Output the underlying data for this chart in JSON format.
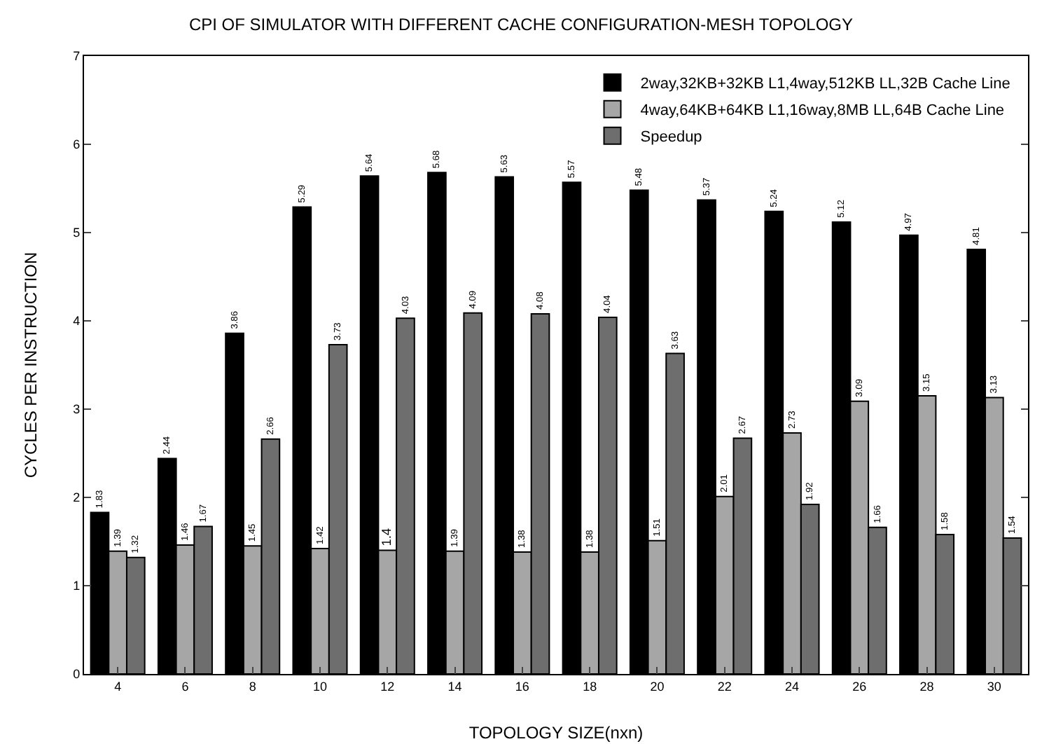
{
  "chart_data": {
    "type": "bar",
    "title": "CPI OF SIMULATOR WITH DIFFERENT CACHE CONFIGURATION-MESH TOPOLOGY",
    "xlabel": "TOPOLOGY SIZE(nxn)",
    "ylabel": "CYCLES PER INSTRUCTION",
    "categories": [
      "4",
      "6",
      "8",
      "10",
      "12",
      "14",
      "16",
      "18",
      "20",
      "22",
      "24",
      "26",
      "28",
      "30"
    ],
    "series": [
      {
        "name": "2way,32KB+32KB L1,4way,512KB LL,32B Cache Line",
        "color": "#000000",
        "values": [
          1.83,
          2.44,
          3.86,
          5.29,
          5.64,
          5.68,
          5.63,
          5.57,
          5.48,
          5.37,
          5.24,
          5.12,
          4.97,
          4.81
        ]
      },
      {
        "name": "4way,64KB+64KB L1,16way,8MB LL,64B Cache Line",
        "color": "#a6a6a6",
        "values": [
          1.39,
          1.46,
          1.45,
          1.42,
          1.4,
          1.39,
          1.38,
          1.38,
          1.51,
          2.01,
          2.73,
          3.09,
          3.15,
          3.13
        ]
      },
      {
        "name": "Speedup",
        "color": "#6e6e6e",
        "values": [
          1.32,
          1.67,
          2.66,
          3.73,
          4.03,
          4.09,
          4.08,
          4.04,
          3.63,
          2.67,
          1.92,
          1.66,
          1.58,
          1.54
        ]
      }
    ],
    "ylim": [
      0,
      7
    ],
    "yticks": [
      0,
      1,
      2,
      3,
      4,
      5,
      6,
      7
    ],
    "grid": false,
    "legend": "top right",
    "data_labels": true
  }
}
